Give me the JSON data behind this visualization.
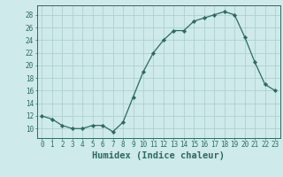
{
  "x": [
    0,
    1,
    2,
    3,
    4,
    5,
    6,
    7,
    8,
    9,
    10,
    11,
    12,
    13,
    14,
    15,
    16,
    17,
    18,
    19,
    20,
    21,
    22,
    23
  ],
  "y": [
    12,
    11.5,
    10.5,
    10,
    10,
    10.5,
    10.5,
    9.5,
    11,
    15,
    19,
    22,
    24,
    25.5,
    25.5,
    27,
    27.5,
    28,
    28.5,
    28,
    24.5,
    20.5,
    17,
    16
  ],
  "line_color": "#2d6b5e",
  "marker": "D",
  "marker_size": 2.2,
  "bg_color": "#ceeaea",
  "grid_color": "#b0d0d0",
  "xlabel": "Humidex (Indice chaleur)",
  "xlim": [
    -0.5,
    23.5
  ],
  "ylim": [
    8.5,
    29.5
  ],
  "yticks": [
    10,
    12,
    14,
    16,
    18,
    20,
    22,
    24,
    26,
    28
  ],
  "xticks": [
    0,
    1,
    2,
    3,
    4,
    5,
    6,
    7,
    8,
    9,
    10,
    11,
    12,
    13,
    14,
    15,
    16,
    17,
    18,
    19,
    20,
    21,
    22,
    23
  ],
  "tick_fontsize": 5.5,
  "label_fontsize": 7.5
}
